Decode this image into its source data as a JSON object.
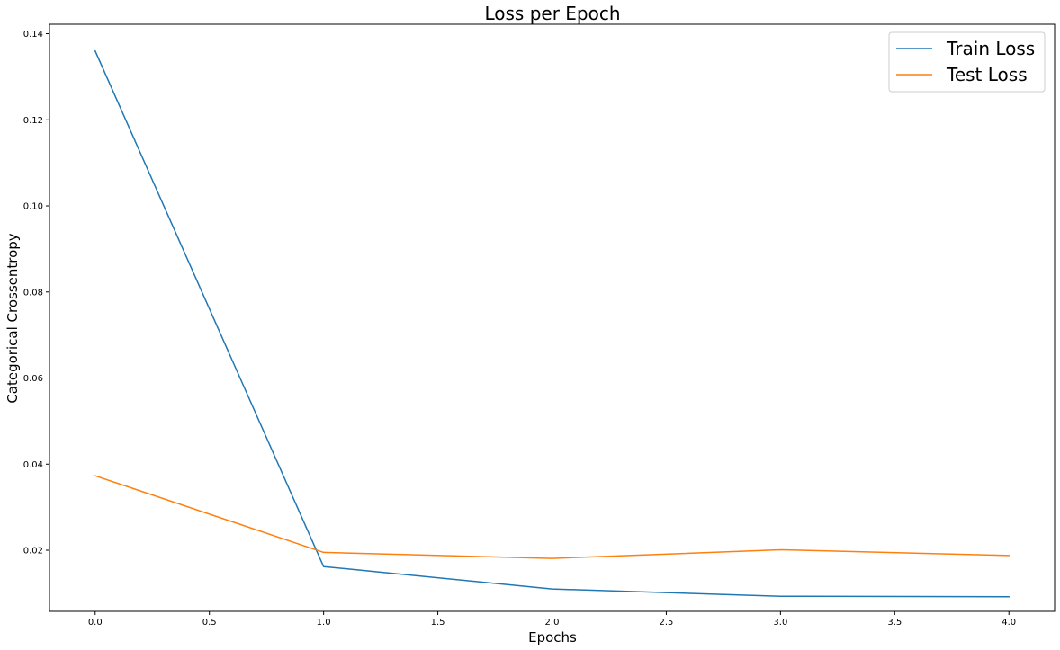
{
  "chart_data": {
    "type": "line",
    "title": "Loss per Epoch",
    "xlabel": "Epochs",
    "ylabel": "Categorical Crossentropy",
    "x": [
      0,
      1,
      2,
      3,
      4
    ],
    "xlim": [
      -0.2,
      4.2
    ],
    "ylim": [
      0.0058,
      0.1422
    ],
    "xticks": [
      0.0,
      0.5,
      1.0,
      1.5,
      2.0,
      2.5,
      3.0,
      3.5,
      4.0
    ],
    "xtick_labels": [
      "0.0",
      "0.5",
      "1.0",
      "1.5",
      "2.0",
      "2.5",
      "3.0",
      "3.5",
      "4.0"
    ],
    "yticks": [
      0.02,
      0.04,
      0.06,
      0.08,
      0.1,
      0.12,
      0.14
    ],
    "ytick_labels": [
      "0.02",
      "0.04",
      "0.06",
      "0.08",
      "0.10",
      "0.12",
      "0.14"
    ],
    "grid": false,
    "legend_position": "top-right",
    "series": [
      {
        "name": "Train Loss",
        "color": "#1f77b4",
        "values": [
          0.136,
          0.0162,
          0.011,
          0.0093,
          0.0092
        ]
      },
      {
        "name": "Test Loss",
        "color": "#ff7f0e",
        "values": [
          0.0373,
          0.0195,
          0.0181,
          0.0201,
          0.0188
        ]
      }
    ]
  }
}
